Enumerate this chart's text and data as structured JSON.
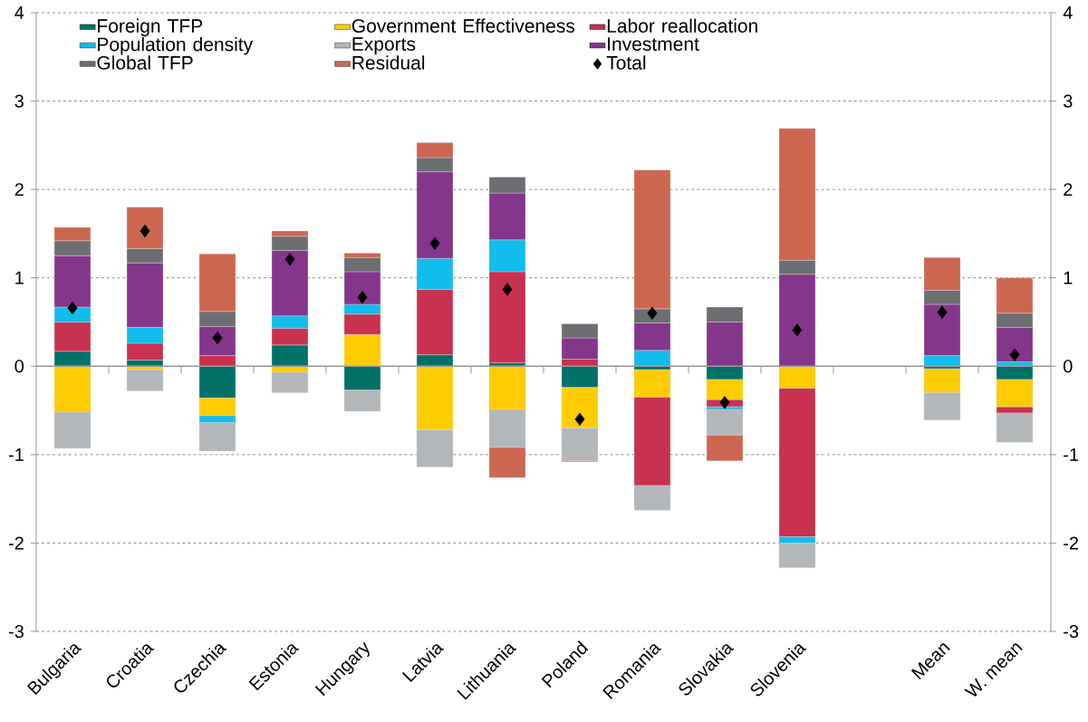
{
  "chart_data": {
    "type": "bar",
    "stacked": true,
    "categories": [
      "Bulgaria",
      "Croatia",
      "Czechia",
      "Estonia",
      "Hungary",
      "Latvia",
      "Lithuania",
      "Poland",
      "Romania",
      "Slovakia",
      "Slovenia",
      null,
      "Mean",
      "W. mean"
    ],
    "series": [
      {
        "name": "Foreign TFP",
        "color": "#007167",
        "values": [
          0.17,
          0.07,
          -0.36,
          0.24,
          -0.27,
          0.13,
          0.04,
          -0.24,
          -0.04,
          -0.15,
          0,
          null,
          -0.03,
          -0.15
        ]
      },
      {
        "name": "Government Effectiveness",
        "color": "#ffcc00",
        "values": [
          -0.52,
          -0.04,
          -0.2,
          -0.07,
          0.36,
          -0.72,
          -0.49,
          -0.46,
          -0.31,
          -0.23,
          -0.25,
          null,
          -0.27,
          -0.31
        ]
      },
      {
        "name": "Labor reallocation",
        "color": "#c8314f",
        "values": [
          0.33,
          0.19,
          0.12,
          0.19,
          0.23,
          0.74,
          1.03,
          0.08,
          -1.0,
          -0.08,
          -1.68,
          null,
          0,
          -0.07
        ]
      },
      {
        "name": "Population density",
        "color": "#11bdec",
        "values": [
          0.17,
          0.18,
          -0.08,
          0.14,
          0.11,
          0.35,
          0.36,
          0,
          0.18,
          -0.03,
          -0.07,
          null,
          0.12,
          0.05
        ]
      },
      {
        "name": "Exports",
        "color": "#b3b7ba",
        "values": [
          -0.41,
          -0.24,
          -0.32,
          -0.23,
          -0.24,
          -0.42,
          -0.43,
          -0.37,
          -0.28,
          -0.29,
          -0.28,
          null,
          -0.31,
          -0.33
        ]
      },
      {
        "name": "Investment",
        "color": "#84368b",
        "values": [
          0.58,
          0.73,
          0.33,
          0.74,
          0.37,
          0.98,
          0.53,
          0.24,
          0.31,
          0.5,
          1.04,
          null,
          0.58,
          0.39
        ]
      },
      {
        "name": "Global TFP",
        "color": "#6d6e71",
        "values": [
          0.17,
          0.16,
          0.17,
          0.16,
          0.16,
          0.16,
          0.18,
          0.16,
          0.16,
          0.17,
          0.16,
          null,
          0.16,
          0.16
        ]
      },
      {
        "name": "Residual",
        "color": "#cc6650",
        "values": [
          0.15,
          0.47,
          0.65,
          0.06,
          0.05,
          0.17,
          -0.34,
          -0.01,
          1.57,
          -0.29,
          1.49,
          null,
          0.37,
          0.4
        ]
      },
      {
        "name": "Total",
        "color": "#000000",
        "type": "scatter",
        "marker": "diamond",
        "values": [
          0.66,
          1.53,
          0.32,
          1.21,
          0.78,
          1.39,
          0.87,
          -0.6,
          0.6,
          -0.41,
          0.41,
          null,
          0.61,
          0.13
        ]
      }
    ],
    "ylim": [
      -3,
      4
    ],
    "yticks": [
      -3,
      -2,
      -1,
      0,
      1,
      2,
      3,
      4
    ],
    "y2lim": [
      -3,
      4
    ],
    "y2ticks": [
      -3,
      -2,
      -1,
      0,
      1,
      2,
      3,
      4
    ],
    "grid": "y",
    "legend": "top"
  }
}
